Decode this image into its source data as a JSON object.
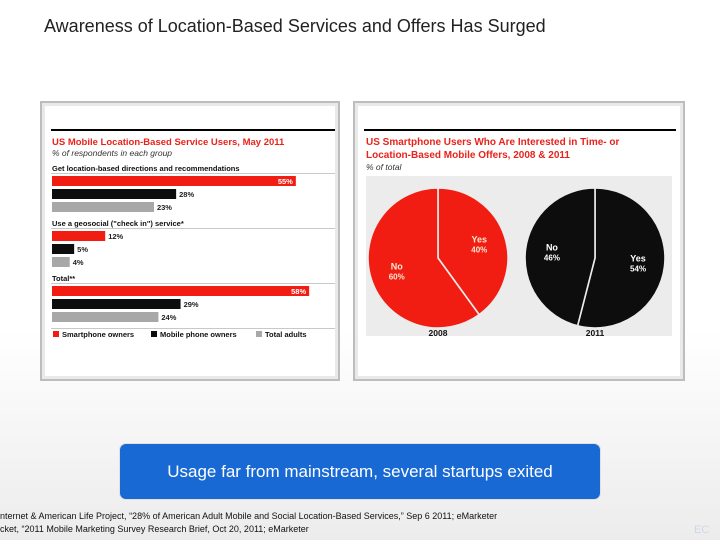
{
  "slide": {
    "title": "Awareness of Location-Based Services and Offers Has Surged",
    "callout": "Usage far from mainstream, several startups exited",
    "source_line1": "nternet & American Life Project, “28% of American Adult Mobile and Social Location-Based Services,” Sep 6 2011; eMarketer",
    "source_line2": "cket, “2011 Mobile Marketing Survey Research Brief, Oct 20, 2011; eMarketer",
    "corner_label": "EC"
  },
  "colors": {
    "red": "#f21d12",
    "black": "#0d0d0d",
    "gray": "#a8a8a8"
  },
  "chart_data": [
    {
      "type": "bar",
      "orientation": "horizontal",
      "title": "US Mobile Location-Based Service Users, May 2011",
      "subtitle": "% of respondents in each group",
      "categories": [
        "Get location-based directions and recommendations",
        "Use a geosocial (\"check in\") service*",
        "Total**"
      ],
      "series": [
        {
          "name": "Smartphone owners",
          "color": "#f21d12",
          "values": [
            55,
            12,
            58
          ]
        },
        {
          "name": "Mobile phone owners",
          "color": "#0d0d0d",
          "values": [
            28,
            5,
            29
          ]
        },
        {
          "name": "Total adults",
          "color": "#a8a8a8",
          "values": [
            23,
            4,
            24
          ]
        }
      ],
      "value_suffix": "%",
      "xlim": [
        0,
        60
      ],
      "legend_position": "bottom"
    },
    {
      "type": "pie",
      "title": "US Smartphone Users Who Are Interested in Time- or Location-Based Mobile Offers, 2008 & 2011",
      "subtitle": "% of total",
      "pies": [
        {
          "label": "2008",
          "slices": [
            {
              "name": "Yes",
              "value": 40,
              "color": "#f21d12"
            },
            {
              "name": "No",
              "value": 60,
              "color": "#f21d12"
            }
          ]
        },
        {
          "label": "2011",
          "slices": [
            {
              "name": "Yes",
              "value": 54,
              "color": "#0d0d0d"
            },
            {
              "name": "No",
              "value": 46,
              "color": "#0d0d0d"
            }
          ]
        }
      ]
    }
  ]
}
